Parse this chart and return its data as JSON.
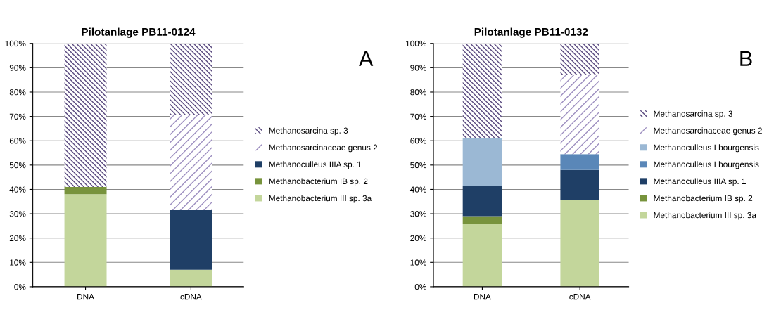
{
  "chart_data": [
    {
      "type": "bar",
      "stacked": true,
      "title": "Pilotanlage PB11-0124",
      "annotations": [
        "A"
      ],
      "categories": [
        "DNA",
        "cDNA"
      ],
      "ylim": [
        0,
        100
      ],
      "yticks": [
        {
          "value": 0,
          "label": "0%"
        },
        {
          "value": 10,
          "label": "10%"
        },
        {
          "value": 20,
          "label": "20%"
        },
        {
          "value": 30,
          "label": "30%"
        },
        {
          "value": 40,
          "label": "40%"
        },
        {
          "value": 50,
          "label": "50%"
        },
        {
          "value": 60,
          "label": "60%"
        },
        {
          "value": 70,
          "label": "70%"
        },
        {
          "value": 80,
          "label": "80%"
        },
        {
          "value": 90,
          "label": "90%"
        },
        {
          "value": 100,
          "label": "100%"
        }
      ],
      "grid": "y",
      "legend": "right",
      "series": [
        {
          "name": "Methanobacterium III sp. 3a",
          "color": "#c3d69b",
          "values": [
            38,
            7
          ]
        },
        {
          "name": "Methanobacterium IB sp. 2",
          "color": "#77933c",
          "values": [
            3,
            0
          ]
        },
        {
          "name": "Methanoculleus IIIA sp. 1",
          "color": "#1f3f66",
          "values": [
            0,
            24.5
          ]
        },
        {
          "name": "Methanosarcinaceae genus 2",
          "color": "#9d8fc0",
          "values": [
            0,
            39
          ]
        },
        {
          "name": "Methanosarcina sp. 3",
          "color": "#5a4a7f",
          "values": [
            59,
            29.5
          ]
        }
      ]
    },
    {
      "type": "bar",
      "stacked": true,
      "title": "Pilotanlage PB11-0132",
      "annotations": [
        "B"
      ],
      "categories": [
        "DNA",
        "cDNA"
      ],
      "ylim": [
        0,
        100
      ],
      "yticks": [
        {
          "value": 0,
          "label": "0%"
        },
        {
          "value": 10,
          "label": "10%"
        },
        {
          "value": 20,
          "label": "20%"
        },
        {
          "value": 30,
          "label": "30%"
        },
        {
          "value": 40,
          "label": "40%"
        },
        {
          "value": 50,
          "label": "50%"
        },
        {
          "value": 60,
          "label": "60%"
        },
        {
          "value": 70,
          "label": "70%"
        },
        {
          "value": 80,
          "label": "80%"
        },
        {
          "value": 90,
          "label": "90%"
        },
        {
          "value": 100,
          "label": "100%"
        }
      ],
      "grid": "y",
      "legend": "right",
      "series": [
        {
          "name": "Methanobacterium III sp. 3a",
          "color": "#c3d69b",
          "values": [
            26,
            35.5
          ]
        },
        {
          "name": "Methanobacterium IB sp. 2",
          "color": "#77933c",
          "values": [
            3,
            0
          ]
        },
        {
          "name": "Methanoculleus IIIA sp. 1",
          "color": "#1f3f66",
          "values": [
            12.5,
            12.5
          ]
        },
        {
          "name": "Methanoculleus I bourgensis",
          "color": "#5a87b8",
          "values": [
            0,
            6.5
          ]
        },
        {
          "name": "Methanoculleus I bourgensis",
          "color": "#9bb8d4",
          "values": [
            19.5,
            0
          ]
        },
        {
          "name": "Methanosarcinaceae genus 2",
          "color": "#9d8fc0",
          "values": [
            0,
            32.5
          ]
        },
        {
          "name": "Methanosarcina sp. 3",
          "color": "#5a4a7f",
          "values": [
            39,
            13
          ]
        }
      ]
    }
  ]
}
